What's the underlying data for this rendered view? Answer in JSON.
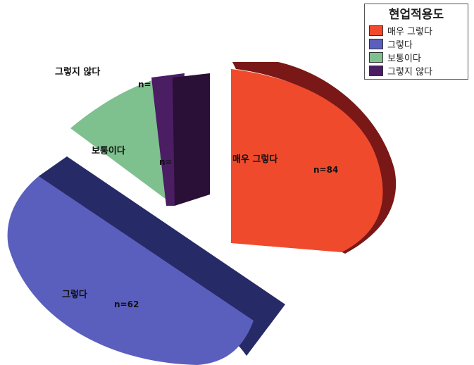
{
  "chart_data": {
    "type": "pie",
    "legend_title": "현업적용도",
    "legend_position": "top-right",
    "slices": [
      {
        "label": "매우 그렇다",
        "n_label": "n=84",
        "value": 84,
        "color": "#f04a2d",
        "side": "#7a1818"
      },
      {
        "label": "그렇다",
        "n_label": "n=62",
        "value": 62,
        "color": "#5a5fbe",
        "side": "#262a66"
      },
      {
        "label": "보통이다",
        "n_label": "n=",
        "value": 18,
        "color": "#7fc08f",
        "side": "#3f6a4e"
      },
      {
        "label": "그렇지 않다",
        "n_label": "n=",
        "value": 6,
        "color": "#4b1d63",
        "side": "#2a0f36"
      }
    ]
  }
}
